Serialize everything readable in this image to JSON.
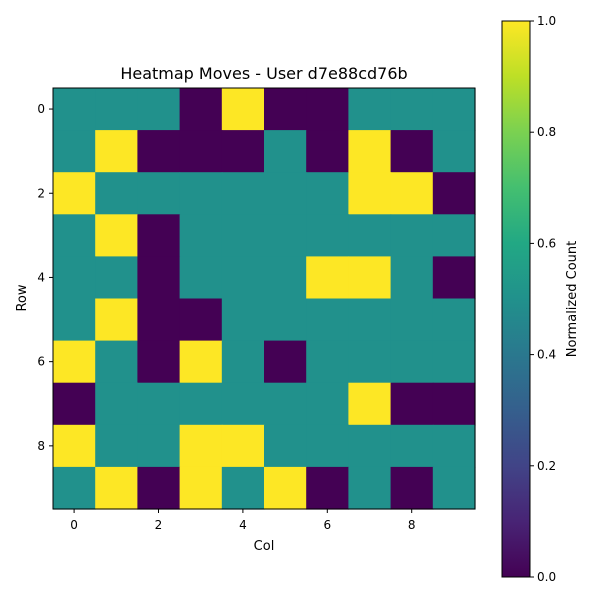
{
  "chart_data": {
    "type": "heatmap",
    "title": "Heatmap Moves - User d7e88cd76b",
    "xlabel": "Col",
    "ylabel": "Row",
    "x_ticks": [
      0,
      2,
      4,
      6,
      8
    ],
    "y_ticks": [
      0,
      2,
      4,
      6,
      8
    ],
    "colorbar": {
      "label": "Normalized Count",
      "range": [
        0.0,
        1.0
      ],
      "ticks": [
        "0.0",
        "0.2",
        "0.4",
        "0.6",
        "0.8",
        "1.0"
      ],
      "colormap": "viridis"
    },
    "matrix": [
      [
        0.5,
        0.5,
        0.5,
        0.0,
        1.0,
        0.0,
        0.0,
        0.5,
        0.5,
        0.5
      ],
      [
        0.5,
        1.0,
        0.0,
        0.0,
        0.0,
        0.5,
        0.0,
        1.0,
        0.0,
        0.5
      ],
      [
        1.0,
        0.5,
        0.5,
        0.5,
        0.5,
        0.5,
        0.5,
        1.0,
        1.0,
        0.0
      ],
      [
        0.5,
        1.0,
        0.0,
        0.5,
        0.5,
        0.5,
        0.5,
        0.5,
        0.5,
        0.5
      ],
      [
        0.5,
        0.5,
        0.0,
        0.5,
        0.5,
        0.5,
        1.0,
        1.0,
        0.5,
        0.0
      ],
      [
        0.5,
        1.0,
        0.0,
        0.0,
        0.5,
        0.5,
        0.5,
        0.5,
        0.5,
        0.5
      ],
      [
        1.0,
        0.5,
        0.0,
        1.0,
        0.5,
        0.0,
        0.5,
        0.5,
        0.5,
        0.5
      ],
      [
        0.0,
        0.5,
        0.5,
        0.5,
        0.5,
        0.5,
        0.5,
        1.0,
        0.0,
        0.0
      ],
      [
        1.0,
        0.5,
        0.5,
        1.0,
        1.0,
        0.5,
        0.5,
        0.5,
        0.5,
        0.5
      ],
      [
        0.5,
        1.0,
        0.0,
        1.0,
        0.5,
        1.0,
        0.0,
        0.5,
        0.0,
        0.5
      ]
    ],
    "grid": false
  }
}
